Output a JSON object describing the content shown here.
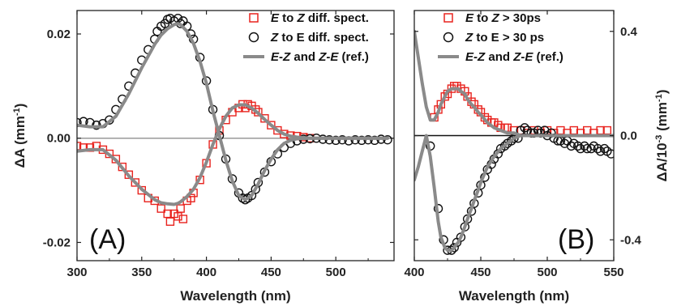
{
  "chart_data": [
    {
      "panel": "(A)",
      "type": "scatter",
      "xlabel": "Wavelength (nm)",
      "ylabel_parts": [
        "ΔA (mm",
        "-1",
        ")"
      ],
      "xlim": [
        300,
        545
      ],
      "ylim": [
        -0.0235,
        0.0245
      ],
      "xticks": [
        300,
        350,
        400,
        450,
        500
      ],
      "yticks": [
        -0.02,
        0.0,
        0.02
      ],
      "ytick_labels": [
        "-0.02",
        "0.00",
        "0.02"
      ],
      "zero_line": true,
      "legend_position": "top-right",
      "legend": [
        {
          "parts": [
            {
              "t": "E",
              "i": true
            },
            {
              "t": " to ",
              "i": false
            },
            {
              "t": "Z",
              "i": true
            },
            {
              "t": " diff. spect.",
              "i": false
            }
          ],
          "marker": "square",
          "color": "#e8231e"
        },
        {
          "parts": [
            {
              "t": "Z",
              "i": true
            },
            {
              "t": " to E diff. spect.",
              "i": false
            }
          ],
          "marker": "circle",
          "color": "#111111"
        },
        {
          "parts": [
            {
              "t": "E",
              "i": true
            },
            {
              "t": "-",
              "i": false
            },
            {
              "t": "Z",
              "i": true
            },
            {
              "t": " and ",
              "i": false
            },
            {
              "t": "Z",
              "i": true
            },
            {
              "t": "-",
              "i": false
            },
            {
              "t": "E",
              "i": true
            },
            {
              "t": " (ref.)",
              "i": false
            }
          ],
          "marker": "line",
          "color": "#8a8a8a"
        }
      ],
      "series": [
        {
          "marker": "square",
          "color": "#e8231e",
          "x": [
            300,
            305,
            310,
            315,
            320,
            325,
            330,
            335,
            340,
            345,
            350,
            355,
            360,
            365,
            370,
            372,
            375,
            378,
            380,
            382,
            385,
            388,
            390,
            395,
            400,
            405,
            410,
            415,
            420,
            425,
            428,
            430,
            432,
            435,
            438,
            440,
            445,
            450,
            455,
            460,
            465,
            470,
            475,
            480
          ],
          "y": [
            -0.0015,
            -0.0018,
            -0.0018,
            -0.0015,
            -0.0022,
            -0.003,
            -0.004,
            -0.0055,
            -0.007,
            -0.0085,
            -0.01,
            -0.0115,
            -0.012,
            -0.0135,
            -0.0145,
            -0.016,
            -0.0145,
            -0.015,
            -0.0135,
            -0.0155,
            -0.012,
            -0.0115,
            -0.0105,
            -0.008,
            -0.0048,
            -0.0012,
            0.0015,
            0.0035,
            0.005,
            0.0058,
            0.0065,
            0.0058,
            0.0065,
            0.0062,
            0.0055,
            0.005,
            0.0038,
            0.0025,
            0.0015,
            0.0008,
            0.0005,
            0.0004,
            0.0002,
            0.0
          ]
        },
        {
          "marker": "circle",
          "color": "#111111",
          "x": [
            300,
            305,
            310,
            315,
            320,
            325,
            330,
            335,
            340,
            345,
            350,
            355,
            360,
            362,
            365,
            368,
            370,
            372,
            375,
            378,
            380,
            382,
            385,
            388,
            390,
            395,
            400,
            405,
            410,
            415,
            420,
            425,
            428,
            430,
            432,
            435,
            438,
            440,
            445,
            450,
            455,
            460,
            465,
            470,
            475,
            480,
            485,
            490,
            495,
            500,
            505,
            510,
            515,
            520,
            525,
            530,
            535,
            540
          ],
          "y": [
            0.003,
            0.0032,
            0.003,
            0.0025,
            0.0028,
            0.0035,
            0.0055,
            0.0075,
            0.01,
            0.0125,
            0.015,
            0.017,
            0.019,
            0.0205,
            0.0215,
            0.022,
            0.0228,
            0.023,
            0.0225,
            0.023,
            0.022,
            0.0225,
            0.0215,
            0.02,
            0.019,
            0.0155,
            0.011,
            0.0055,
            0.0005,
            -0.004,
            -0.0078,
            -0.0105,
            -0.0115,
            -0.0118,
            -0.0115,
            -0.011,
            -0.0098,
            -0.0085,
            -0.0065,
            -0.0045,
            -0.003,
            -0.0018,
            -0.001,
            -0.0005,
            -0.0002,
            -0.0001,
            0.0,
            -0.0002,
            -0.0003,
            -0.0004,
            -0.0003,
            -0.0005,
            -0.0003,
            -0.0004,
            -0.0003,
            -0.0004,
            -0.0002,
            -0.0003
          ]
        },
        {
          "marker": "line",
          "color": "#8a8a8a",
          "x": [
            300,
            310,
            320,
            330,
            340,
            350,
            360,
            365,
            370,
            375,
            378,
            380,
            385,
            390,
            395,
            400,
            405,
            410,
            415,
            420,
            425,
            430,
            435,
            440,
            445,
            450,
            455,
            460,
            465,
            470,
            480,
            490,
            500,
            510,
            520,
            530,
            540
          ],
          "y": [
            0.0025,
            0.0022,
            0.0022,
            0.0042,
            0.0085,
            0.0135,
            0.018,
            0.0198,
            0.021,
            0.0218,
            0.022,
            0.0218,
            0.0205,
            0.0182,
            0.0148,
            0.0105,
            0.0052,
            0.0005,
            -0.0042,
            -0.0082,
            -0.011,
            -0.0118,
            -0.011,
            -0.0088,
            -0.0062,
            -0.004,
            -0.0022,
            -0.001,
            -0.0004,
            -0.0001,
            0.0,
            0.0,
            0.0,
            0.0,
            0.0,
            0.0,
            0.0
          ]
        },
        {
          "marker": "line",
          "color": "#8a8a8a",
          "x": [
            300,
            310,
            320,
            330,
            340,
            350,
            360,
            365,
            370,
            375,
            378,
            380,
            385,
            390,
            395,
            400,
            405,
            410,
            415,
            420,
            425,
            430,
            435,
            440,
            445,
            450,
            455,
            460,
            465,
            470,
            480,
            490,
            500,
            510,
            520,
            530,
            540
          ],
          "y": [
            -0.0025,
            -0.0022,
            -0.0022,
            -0.0042,
            -0.0072,
            -0.0098,
            -0.0118,
            -0.0124,
            -0.0126,
            -0.0127,
            -0.0125,
            -0.0122,
            -0.0112,
            -0.0098,
            -0.0076,
            -0.0046,
            -0.0012,
            0.0018,
            0.0042,
            0.0058,
            0.0064,
            0.0064,
            0.0058,
            0.0048,
            0.0036,
            0.0025,
            0.0015,
            0.0008,
            0.0004,
            0.0002,
            0.0,
            0.0,
            0.0,
            0.0,
            0.0,
            0.0,
            0.0
          ]
        }
      ]
    },
    {
      "panel": "(B)",
      "type": "scatter",
      "xlabel": "Wavelength (nm)",
      "ylabel_parts": [
        "ΔA/10",
        "-3",
        " (mm",
        "-1",
        ")"
      ],
      "xlim": [
        400,
        550
      ],
      "ylim": [
        -0.48,
        0.48
      ],
      "xticks": [
        400,
        450,
        500,
        550
      ],
      "yticks": [
        -0.4,
        0.0,
        0.4
      ],
      "ytick_labels": [
        "-0.4",
        "0.0",
        "0.4"
      ],
      "zero_line": true,
      "legend_position": "top-right",
      "legend": [
        {
          "parts": [
            {
              "t": "E",
              "i": true
            },
            {
              "t": "  to  ",
              "i": false
            },
            {
              "t": "Z",
              "i": true
            },
            {
              "t": "  > 30ps",
              "i": false
            }
          ],
          "marker": "square",
          "color": "#e8231e"
        },
        {
          "parts": [
            {
              "t": "Z",
              "i": true
            },
            {
              "t": "  to  E > 30 ps",
              "i": false
            }
          ],
          "marker": "circle",
          "color": "#111111"
        },
        {
          "parts": [
            {
              "t": "E",
              "i": true
            },
            {
              "t": "-",
              "i": false
            },
            {
              "t": "Z",
              "i": true
            },
            {
              "t": " and ",
              "i": false
            },
            {
              "t": "Z",
              "i": true
            },
            {
              "t": "-",
              "i": false
            },
            {
              "t": "E",
              "i": true
            },
            {
              "t": " (ref.)",
              "i": false
            }
          ],
          "marker": "line",
          "color": "#8a8a8a"
        }
      ],
      "series": [
        {
          "marker": "square",
          "color": "#e8231e",
          "x": [
            415,
            418,
            420,
            423,
            425,
            428,
            430,
            432,
            435,
            438,
            440,
            443,
            445,
            448,
            450,
            453,
            455,
            458,
            460,
            463,
            465,
            468,
            470,
            475,
            480,
            485,
            490,
            495,
            500,
            505,
            510,
            515,
            520,
            525,
            530,
            535,
            540,
            545
          ],
          "y": [
            0.07,
            0.1,
            0.12,
            0.15,
            0.16,
            0.18,
            0.19,
            0.19,
            0.18,
            0.17,
            0.15,
            0.13,
            0.12,
            0.1,
            0.09,
            0.07,
            0.06,
            0.05,
            0.05,
            0.04,
            0.03,
            0.03,
            0.03,
            0.02,
            0.02,
            0.01,
            0.02,
            0.01,
            0.02,
            0.01,
            0.02,
            0.01,
            0.02,
            0.01,
            0.02,
            0.01,
            0.02,
            0.02
          ]
        },
        {
          "marker": "circle",
          "color": "#111111",
          "x": [
            412,
            418,
            422,
            425,
            428,
            430,
            432,
            435,
            438,
            440,
            443,
            445,
            448,
            450,
            453,
            455,
            458,
            460,
            463,
            465,
            468,
            470,
            473,
            475,
            478,
            480,
            483,
            485,
            488,
            490,
            493,
            495,
            498,
            500,
            503,
            505,
            508,
            510,
            513,
            515,
            518,
            520,
            523,
            525,
            528,
            530,
            533,
            535,
            538,
            540,
            543,
            545,
            548
          ],
          "y": [
            -0.04,
            -0.28,
            -0.4,
            -0.44,
            -0.44,
            -0.43,
            -0.41,
            -0.39,
            -0.35,
            -0.32,
            -0.29,
            -0.26,
            -0.22,
            -0.19,
            -0.16,
            -0.13,
            -0.11,
            -0.09,
            -0.07,
            -0.05,
            -0.04,
            -0.03,
            -0.02,
            -0.01,
            -0.01,
            0.02,
            0.03,
            0.02,
            0.01,
            0.01,
            0.02,
            0.01,
            0.02,
            0.0,
            0.01,
            -0.01,
            -0.02,
            -0.02,
            -0.03,
            -0.02,
            -0.04,
            -0.03,
            -0.04,
            -0.05,
            -0.04,
            -0.05,
            -0.05,
            -0.04,
            -0.05,
            -0.06,
            -0.05,
            -0.06,
            -0.07
          ]
        },
        {
          "marker": "line",
          "color": "#8a8a8a",
          "x": [
            400,
            403,
            406,
            409,
            412,
            415,
            418,
            420,
            423,
            425,
            428,
            430,
            433,
            435,
            438,
            440,
            443,
            445,
            448,
            450,
            455,
            460,
            465,
            470,
            475,
            480,
            490,
            500,
            510,
            520,
            530,
            540,
            550
          ],
          "y": [
            0.4,
            0.3,
            0.2,
            0.11,
            0.06,
            0.06,
            0.09,
            0.12,
            0.15,
            0.17,
            0.18,
            0.18,
            0.18,
            0.17,
            0.16,
            0.14,
            0.12,
            0.11,
            0.09,
            0.08,
            0.05,
            0.03,
            0.02,
            0.01,
            0.01,
            0.0,
            0.0,
            0.0,
            0.0,
            0.0,
            0.0,
            0.0,
            0.0
          ]
        },
        {
          "marker": "line",
          "color": "#8a8a8a",
          "x": [
            400,
            403,
            406,
            409,
            412,
            415,
            418,
            420,
            423,
            425,
            428,
            430,
            433,
            435,
            438,
            440,
            443,
            445,
            448,
            450,
            455,
            460,
            465,
            470,
            475,
            480,
            490,
            500,
            510,
            520,
            530,
            540,
            550
          ],
          "y": [
            -0.17,
            -0.12,
            -0.06,
            0.0,
            -0.08,
            -0.2,
            -0.33,
            -0.39,
            -0.43,
            -0.44,
            -0.44,
            -0.43,
            -0.41,
            -0.39,
            -0.35,
            -0.32,
            -0.28,
            -0.25,
            -0.21,
            -0.18,
            -0.12,
            -0.08,
            -0.05,
            -0.03,
            -0.01,
            0.0,
            0.0,
            0.0,
            0.0,
            0.0,
            0.0,
            0.0,
            0.0
          ]
        }
      ]
    }
  ]
}
